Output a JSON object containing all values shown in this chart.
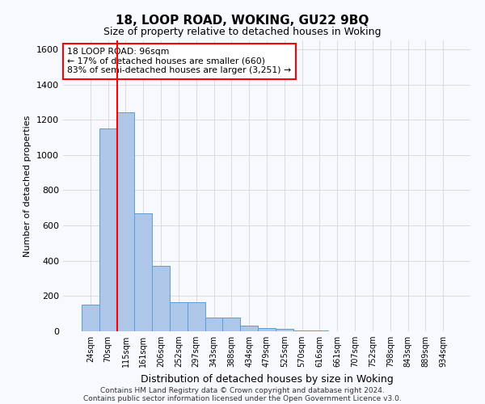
{
  "title1": "18, LOOP ROAD, WOKING, GU22 9BQ",
  "title2": "Size of property relative to detached houses in Woking",
  "xlabel": "Distribution of detached houses by size in Woking",
  "ylabel": "Number of detached properties",
  "categories": [
    "24sqm",
    "70sqm",
    "115sqm",
    "161sqm",
    "206sqm",
    "252sqm",
    "297sqm",
    "343sqm",
    "388sqm",
    "434sqm",
    "479sqm",
    "525sqm",
    "570sqm",
    "616sqm",
    "661sqm",
    "707sqm",
    "752sqm",
    "798sqm",
    "843sqm",
    "889sqm",
    "934sqm"
  ],
  "values": [
    150,
    1150,
    1240,
    670,
    370,
    165,
    165,
    80,
    80,
    30,
    20,
    15,
    5,
    3,
    2,
    1,
    1,
    0,
    0,
    0,
    0
  ],
  "bar_color": "#aec6e8",
  "bar_edge_color": "#5a9fd4",
  "grid_color": "#d0d0d0",
  "vline_x": 1.5,
  "vline_color": "red",
  "annotation_text": "18 LOOP ROAD: 96sqm\n← 17% of detached houses are smaller (660)\n83% of semi-detached houses are larger (3,251) →",
  "annotation_box_color": "white",
  "annotation_box_edge_color": "red",
  "footer1": "Contains HM Land Registry data © Crown copyright and database right 2024.",
  "footer2": "Contains public sector information licensed under the Open Government Licence v3.0.",
  "ylim": [
    0,
    1650
  ],
  "yticks": [
    0,
    200,
    400,
    600,
    800,
    1000,
    1200,
    1400,
    1600
  ],
  "bg_color": "#f8f8ff"
}
